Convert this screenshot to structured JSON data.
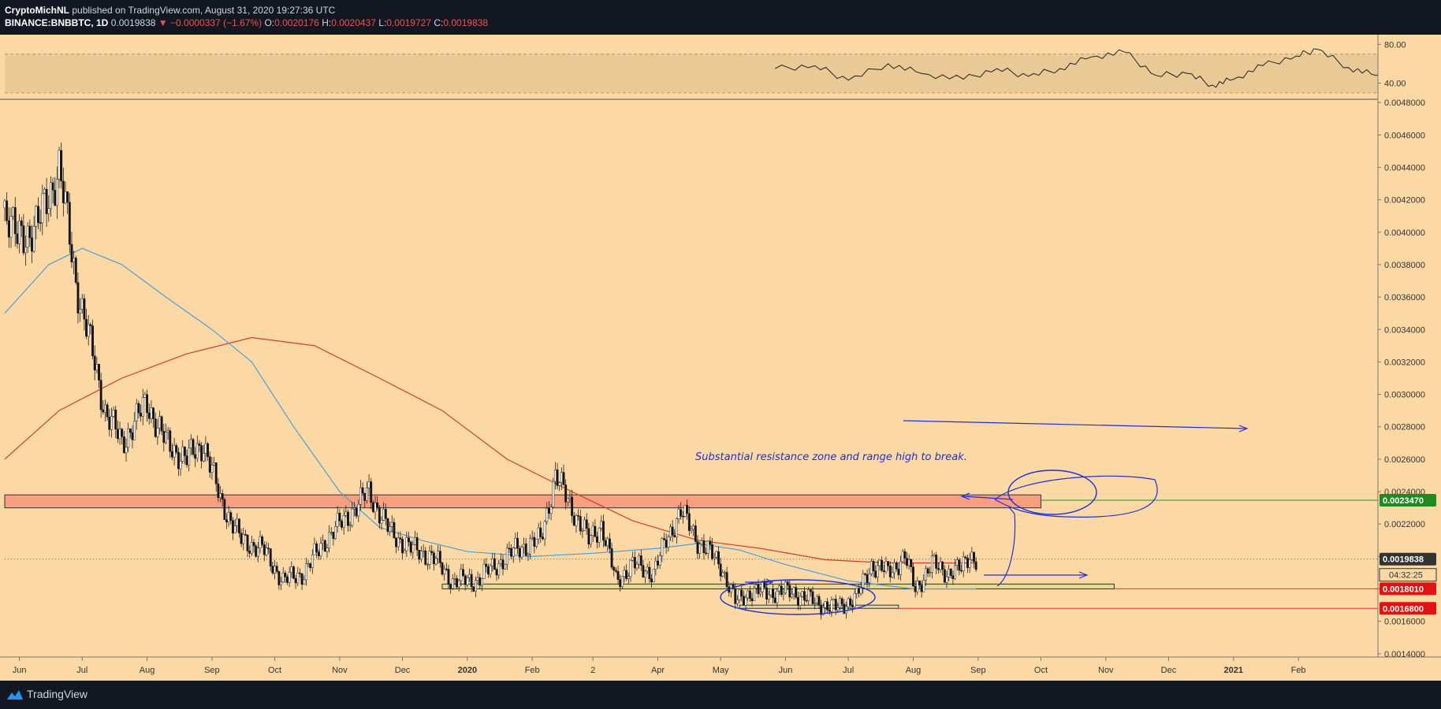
{
  "header": {
    "publisher": "CryptoMichNL",
    "published_text": "published on TradingView.com, August 31, 2020 19:27:36 UTC",
    "symbol": "BINANCE:BNBBTC, 1D",
    "last": "0.0019838",
    "change": "−0.0000337 (−1.67%)",
    "o_label": "O:",
    "o_value": "0.0020176",
    "h_label": "H:",
    "h_value": "0.0020437",
    "l_label": "L:",
    "l_value": "0.0019727",
    "c_label": "C:",
    "c_value": "0.0019838"
  },
  "footer": {
    "brand": "TradingView"
  },
  "colors": {
    "background": "#fcd8a4",
    "rsi_band": "#e9c995",
    "sma_red": "#d43b2c",
    "sma_blue": "#4a9fd8",
    "drawing_blue": "#1f2fd6",
    "resistance_zone": "#f79f7f",
    "support_zone": "#e3d79a",
    "support_line": "#ef2b2b",
    "resistance_line": "#2e8b2e",
    "last_price_tag": "#333333",
    "tag_red": "#e21212",
    "tag_green": "#1f8a1f"
  },
  "chart_data": [
    {
      "type": "line",
      "name": "rsi",
      "ylim": [
        25,
        90
      ],
      "band": [
        30,
        70
      ],
      "y_ticks": [
        "80.00",
        "40.00"
      ],
      "x": [
        "2020-05-27",
        "2020-06-15",
        "2020-07-01",
        "2020-07-20",
        "2020-08-05",
        "2020-08-25",
        "2020-09-10",
        "2020-09-25",
        "2020-10-10",
        "2020-10-25",
        "2020-11-10",
        "2020-11-25",
        "2020-12-10",
        "2020-12-22",
        "2021-01-01",
        "2021-01-15",
        "2021-01-31",
        "2021-02-10",
        "2021-02-25",
        "2021-03-10",
        "2021-03-25",
        "2021-04-10",
        "2021-04-25",
        "2021-05-10",
        "2021-05-25",
        "2021-06-10",
        "2021-06-25",
        "2021-07-10",
        "2021-07-25",
        "2021-08-10",
        "2021-08-25",
        "2021-09-01"
      ],
      "values": [
        55,
        58,
        43,
        60,
        50,
        44,
        55,
        47,
        55,
        67,
        72,
        48,
        50,
        38,
        44,
        58,
        68,
        75,
        56,
        48,
        54,
        56,
        63,
        42,
        50,
        55,
        46,
        68,
        78,
        52,
        57,
        55
      ]
    },
    {
      "type": "candlestick",
      "name": "BINANCE:BNBBTC, 1D",
      "ylim": [
        0.00138,
        0.00482
      ],
      "y_ticks": [
        "0.0048000",
        "0.0046000",
        "0.0044000",
        "0.0042000",
        "0.0040000",
        "0.0038000",
        "0.0036000",
        "0.0034000",
        "0.0032000",
        "0.0030000",
        "0.0028000",
        "0.0026000",
        "0.0024000",
        "0.0022000",
        "0.0020000",
        "0.0018000",
        "0.0016000",
        "0.0014000"
      ],
      "x_ticks": [
        "Jun",
        "Jul",
        "Aug",
        "Sep",
        "Oct",
        "Nov",
        "Dec",
        "2020",
        "Feb",
        "2",
        "Apr",
        "May",
        "Jun",
        "Jul",
        "Aug",
        "Sep",
        "Oct",
        "Nov",
        "Dec",
        "2021",
        "Feb"
      ],
      "x_range": [
        "2019-05-25",
        "2021-03-11"
      ],
      "close_path": [
        [
          "2019-05-25",
          0.00415
        ],
        [
          "2019-05-31",
          0.00395
        ],
        [
          "2019-06-10",
          0.00405
        ],
        [
          "2019-06-20",
          0.0044
        ],
        [
          "2019-06-28",
          0.0037
        ],
        [
          "2019-07-05",
          0.0033
        ],
        [
          "2019-07-12",
          0.0029
        ],
        [
          "2019-07-20",
          0.0027
        ],
        [
          "2019-08-01",
          0.00295
        ],
        [
          "2019-08-10",
          0.0027
        ],
        [
          "2019-08-20",
          0.0026
        ],
        [
          "2019-08-28",
          0.0027
        ],
        [
          "2019-09-05",
          0.00235
        ],
        [
          "2019-09-15",
          0.0021
        ],
        [
          "2019-09-25",
          0.00205
        ],
        [
          "2019-10-05",
          0.00185
        ],
        [
          "2019-10-15",
          0.0019
        ],
        [
          "2019-10-25",
          0.0021
        ],
        [
          "2019-11-05",
          0.00225
        ],
        [
          "2019-11-15",
          0.0024
        ],
        [
          "2019-11-25",
          0.00215
        ],
        [
          "2019-12-05",
          0.00205
        ],
        [
          "2019-12-15",
          0.002
        ],
        [
          "2019-12-25",
          0.00185
        ],
        [
          "2020-01-05",
          0.00185
        ],
        [
          "2020-01-15",
          0.00195
        ],
        [
          "2020-01-25",
          0.00205
        ],
        [
          "2020-02-05",
          0.0021
        ],
        [
          "2020-02-12",
          0.0025
        ],
        [
          "2020-02-20",
          0.0023
        ],
        [
          "2020-02-28",
          0.0021
        ],
        [
          "2020-03-05",
          0.0022
        ],
        [
          "2020-03-12",
          0.00185
        ],
        [
          "2020-03-20",
          0.00195
        ],
        [
          "2020-03-30",
          0.0019
        ],
        [
          "2020-04-05",
          0.0021
        ],
        [
          "2020-04-12",
          0.00228
        ],
        [
          "2020-04-20",
          0.0021
        ],
        [
          "2020-05-01",
          0.00195
        ],
        [
          "2020-05-08",
          0.00172
        ],
        [
          "2020-05-15",
          0.00178
        ],
        [
          "2020-05-25",
          0.00178
        ],
        [
          "2020-06-05",
          0.00178
        ],
        [
          "2020-06-15",
          0.00172
        ],
        [
          "2020-06-25",
          0.00168
        ],
        [
          "2020-07-05",
          0.00175
        ],
        [
          "2020-07-12",
          0.00195
        ],
        [
          "2020-07-20",
          0.0019
        ],
        [
          "2020-07-28",
          0.002
        ],
        [
          "2020-08-02",
          0.0018
        ],
        [
          "2020-08-10",
          0.00195
        ],
        [
          "2020-08-18",
          0.0019
        ],
        [
          "2020-08-24",
          0.00192
        ],
        [
          "2020-08-28",
          0.00202
        ],
        [
          "2020-08-31",
          0.00198
        ]
      ],
      "sma_blue": [
        [
          "2019-05-25",
          0.0035
        ],
        [
          "2019-06-15",
          0.0038
        ],
        [
          "2019-07-01",
          0.0039
        ],
        [
          "2019-07-20",
          0.0038
        ],
        [
          "2019-08-10",
          0.0036
        ],
        [
          "2019-09-01",
          0.0034
        ],
        [
          "2019-09-20",
          0.0032
        ],
        [
          "2019-10-10",
          0.0028
        ],
        [
          "2019-11-01",
          0.0024
        ],
        [
          "2019-11-20",
          0.00218
        ],
        [
          "2019-12-10",
          0.0021
        ],
        [
          "2020-01-01",
          0.00203
        ],
        [
          "2020-02-01",
          0.002
        ],
        [
          "2020-03-01",
          0.00202
        ],
        [
          "2020-04-01",
          0.00205
        ],
        [
          "2020-04-20",
          0.00208
        ],
        [
          "2020-05-10",
          0.00204
        ],
        [
          "2020-06-01",
          0.00195
        ],
        [
          "2020-07-01",
          0.00185
        ],
        [
          "2020-08-01",
          0.0018
        ],
        [
          "2020-08-31",
          0.0018
        ]
      ],
      "sma_red": [
        [
          "2019-05-25",
          0.0026
        ],
        [
          "2019-06-20",
          0.0029
        ],
        [
          "2019-07-20",
          0.0031
        ],
        [
          "2019-08-20",
          0.00325
        ],
        [
          "2019-09-20",
          0.00335
        ],
        [
          "2019-10-20",
          0.0033
        ],
        [
          "2019-11-20",
          0.0031
        ],
        [
          "2019-12-20",
          0.0029
        ],
        [
          "2020-01-20",
          0.0026
        ],
        [
          "2020-02-20",
          0.0024
        ],
        [
          "2020-03-20",
          0.00222
        ],
        [
          "2020-04-20",
          0.0021
        ],
        [
          "2020-05-20",
          0.00205
        ],
        [
          "2020-06-20",
          0.00198
        ],
        [
          "2020-07-20",
          0.00196
        ],
        [
          "2020-08-31",
          0.00196
        ]
      ],
      "resistance_zone": {
        "from": "2019-05-25",
        "to": "2020-10-01",
        "y_low": 0.0023,
        "y_high": 0.00238
      },
      "support_zone_upper": {
        "from": "2019-12-20",
        "to": "2020-11-05",
        "y_low": 0.0018,
        "y_high": 0.00183
      },
      "support_zone_lower": {
        "from": "2020-05-10",
        "to": "2020-07-25",
        "y_low": 0.00168,
        "y_high": 0.0017
      },
      "levels": [
        {
          "value": 0.002347,
          "label": "0.0023470",
          "color": "green"
        },
        {
          "value": 0.001801,
          "label": "0.0018010",
          "color": "red"
        },
        {
          "value": 0.00168,
          "label": "0.0016800",
          "color": "red"
        }
      ],
      "last_price": {
        "value": 0.0019838,
        "label": "0.0019838",
        "countdown": "04:32:25"
      },
      "annotation": "Substantial resistance zone and range high to break."
    }
  ]
}
